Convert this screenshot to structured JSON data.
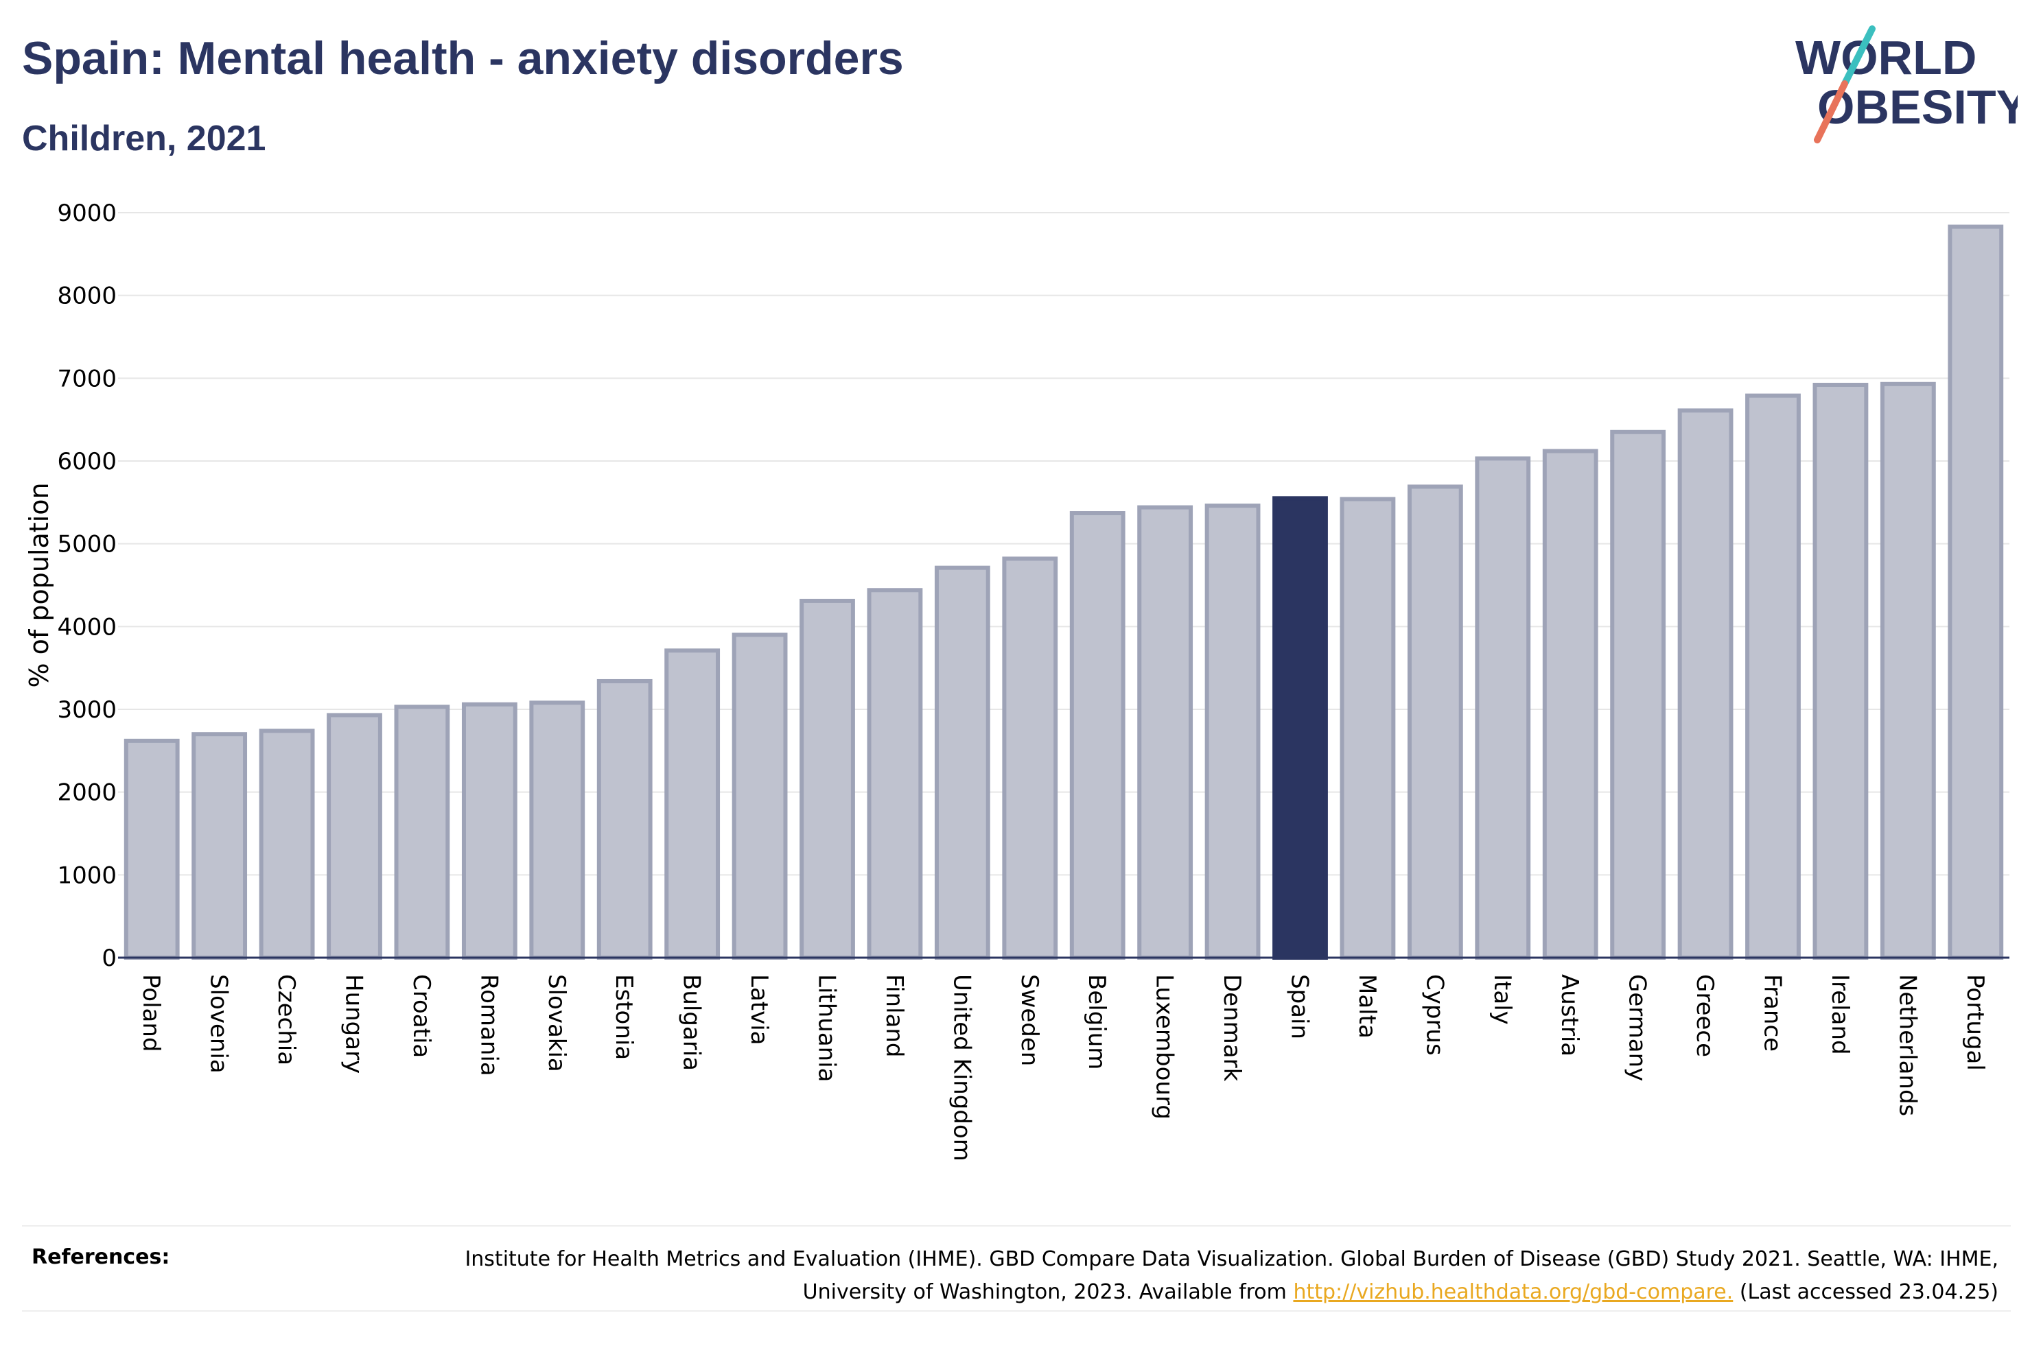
{
  "header": {
    "title": "Spain: Mental health - anxiety disorders",
    "subtitle": "Children, 2021"
  },
  "logo": {
    "line1": "WORLD",
    "line2": "OBESITY",
    "slash_colors": [
      "#3bbfbf",
      "#e8735a"
    ]
  },
  "colors": {
    "highlight": "#2b3561",
    "bar_fill": "#bfc2cf",
    "bar_stroke": "#9ea3b7",
    "axis": "#2b3561",
    "grid": "#e6e6e6"
  },
  "chart_data": {
    "type": "bar",
    "title": "Spain: Mental health - anxiety disorders",
    "subtitle": "Children, 2021",
    "xlabel": "",
    "ylabel": "% of population",
    "ylim": [
      0,
      9000
    ],
    "yticks": [
      0,
      1000,
      2000,
      3000,
      4000,
      5000,
      6000,
      7000,
      8000,
      9000
    ],
    "grid": true,
    "highlight": "Spain",
    "categories": [
      "Poland",
      "Slovenia",
      "Czechia",
      "Hungary",
      "Croatia",
      "Romania",
      "Slovakia",
      "Estonia",
      "Bulgaria",
      "Latvia",
      "Lithuania",
      "Finland",
      "United Kingdom",
      "Sweden",
      "Belgium",
      "Luxembourg",
      "Denmark",
      "Spain",
      "Malta",
      "Cyprus",
      "Italy",
      "Austria",
      "Germany",
      "Greece",
      "France",
      "Ireland",
      "Netherlands",
      "Portugal"
    ],
    "values": [
      2620,
      2700,
      2740,
      2930,
      3030,
      3060,
      3080,
      3340,
      3710,
      3900,
      4310,
      4440,
      4710,
      4820,
      5370,
      5440,
      5460,
      5550,
      5540,
      5690,
      6030,
      6120,
      6350,
      6610,
      6790,
      6920,
      6930,
      8830
    ]
  },
  "references": {
    "label": "References:",
    "text_before": "Institute for Health Metrics and Evaluation (IHME). GBD Compare Data Visualization. Global Burden of Disease (GBD) Study 2021. Seattle, WA: IHME, University of Washington, 2023. Available from ",
    "link": "http://vizhub.healthdata.org/gbd-compare.",
    "text_after": " (Last accessed 23.04.25)"
  }
}
